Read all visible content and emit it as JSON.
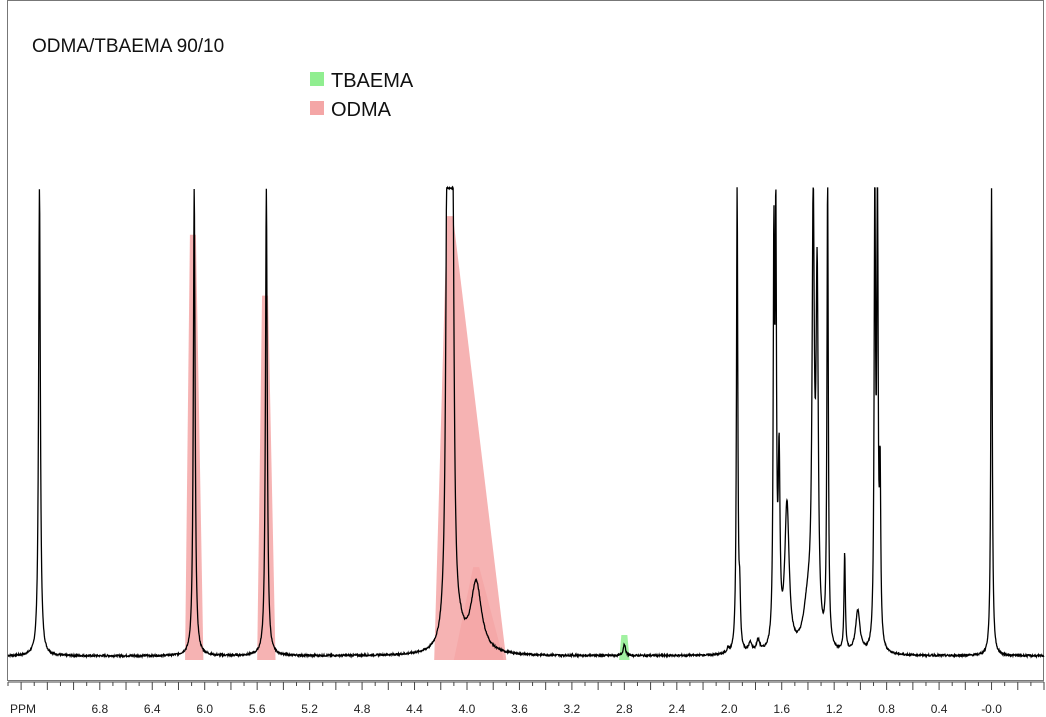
{
  "chart_data": {
    "type": "line",
    "title": "ODMA/TBAEMA 90/10",
    "xlabel": "PPM",
    "x_reversed": true,
    "xlim": [
      7.5,
      -0.4
    ],
    "ylim": [
      -0.02,
      1.0
    ],
    "tick_labels": [
      "6.8",
      "6.4",
      "6.0",
      "5.6",
      "5.2",
      "4.8",
      "4.4",
      "4.0",
      "3.6",
      "3.2",
      "2.8",
      "2.4",
      "2.0",
      "1.6",
      "1.2",
      "0.8",
      "0.4",
      "-0.0"
    ],
    "tick_values": [
      6.8,
      6.4,
      6.0,
      5.6,
      5.2,
      4.8,
      4.4,
      4.0,
      3.6,
      3.2,
      2.8,
      2.4,
      2.0,
      1.6,
      1.2,
      0.8,
      0.4,
      0.0
    ],
    "legend": [
      {
        "name": "TBAEMA",
        "color": "#90ee90"
      },
      {
        "name": "ODMA",
        "color": "#f4a6a6"
      }
    ],
    "legend_position": "top-center",
    "spectrum_color": "#000000",
    "peaks": [
      {
        "ppm": 7.26,
        "height": 1.0,
        "width": 0.008
      },
      {
        "ppm": 6.08,
        "height": 1.0,
        "width": 0.008
      },
      {
        "ppm": 5.53,
        "height": 1.0,
        "width": 0.008
      },
      {
        "ppm": 4.15,
        "height": 1.0,
        "width": 0.012
      },
      {
        "ppm": 4.13,
        "height": 1.0,
        "width": 0.012
      },
      {
        "ppm": 4.11,
        "height": 0.9,
        "width": 0.012
      },
      {
        "ppm": 4.05,
        "height": 0.02,
        "width": 0.03
      },
      {
        "ppm": 3.93,
        "height": 0.15,
        "width": 0.05
      },
      {
        "ppm": 2.8,
        "height": 0.025,
        "width": 0.01
      },
      {
        "ppm": 1.94,
        "height": 1.0,
        "width": 0.006
      },
      {
        "ppm": 1.92,
        "height": 0.1,
        "width": 0.006
      },
      {
        "ppm": 1.66,
        "height": 0.82,
        "width": 0.006
      },
      {
        "ppm": 1.645,
        "height": 0.85,
        "width": 0.006
      },
      {
        "ppm": 1.62,
        "height": 0.38,
        "width": 0.008
      },
      {
        "ppm": 1.56,
        "height": 0.31,
        "width": 0.02
      },
      {
        "ppm": 1.4,
        "height": 0.1,
        "width": 0.04
      },
      {
        "ppm": 1.36,
        "height": 0.9,
        "width": 0.01
      },
      {
        "ppm": 1.33,
        "height": 0.75,
        "width": 0.01
      },
      {
        "ppm": 1.25,
        "height": 1.0,
        "width": 0.006
      },
      {
        "ppm": 1.12,
        "height": 0.21,
        "width": 0.006
      },
      {
        "ppm": 1.02,
        "height": 0.09,
        "width": 0.02
      },
      {
        "ppm": 0.89,
        "height": 1.0,
        "width": 0.006
      },
      {
        "ppm": 0.87,
        "height": 1.0,
        "width": 0.006
      },
      {
        "ppm": 0.85,
        "height": 0.35,
        "width": 0.006
      },
      {
        "ppm": 1.84,
        "height": 0.02,
        "width": 0.015
      },
      {
        "ppm": 1.78,
        "height": 0.025,
        "width": 0.015
      },
      {
        "ppm": 2.01,
        "height": 0.01,
        "width": 0.01
      },
      {
        "ppm": 0.0,
        "height": 1.0,
        "width": 0.006
      }
    ],
    "highlight_regions": [
      {
        "label": "ODMA",
        "color": "#f4a6a6",
        "x0": 6.15,
        "x1": 6.01,
        "peak_ppm": 6.09,
        "height": 0.9
      },
      {
        "label": "ODMA",
        "color": "#f4a6a6",
        "x0": 5.6,
        "x1": 5.46,
        "peak_ppm": 5.54,
        "height": 0.77
      },
      {
        "label": "ODMA",
        "color": "#f4a6a6",
        "x0": 4.25,
        "x1": 3.7,
        "peak_ppm": 4.13,
        "height": 0.94
      },
      {
        "label": "ODMA",
        "color": "#f4a6a6",
        "x0": 4.1,
        "x1": 3.72,
        "peak_ppm": 3.93,
        "height": 0.19
      },
      {
        "label": "TBAEMA",
        "color": "#90ee90",
        "x0": 2.84,
        "x1": 2.76,
        "peak_ppm": 2.8,
        "height": 0.045
      }
    ]
  }
}
